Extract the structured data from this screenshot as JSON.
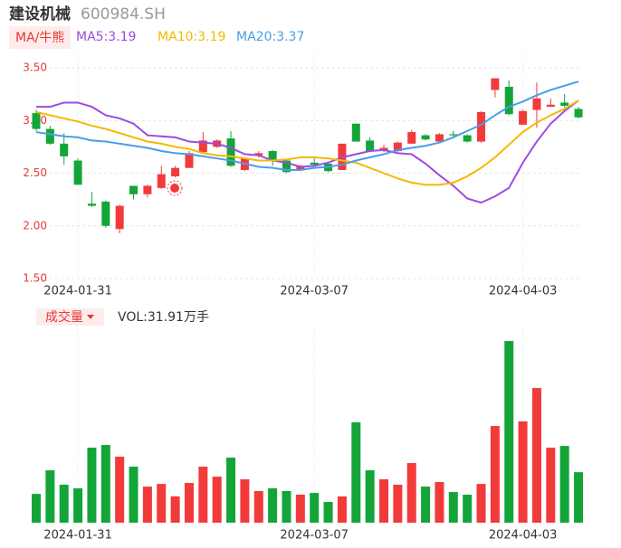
{
  "chart_data": [
    {
      "type": "candlestick",
      "title": "建设机械",
      "subtitle": "600984.SH",
      "legend_button": "MA/牛熊",
      "categories": [
        null,
        null,
        null,
        "2024-01-31",
        null,
        null,
        null,
        null,
        null,
        null,
        null,
        null,
        null,
        null,
        null,
        null,
        null,
        null,
        null,
        null,
        "2024-03-07",
        null,
        null,
        null,
        null,
        null,
        null,
        null,
        null,
        null,
        null,
        null,
        null,
        null,
        null,
        "2024-04-03",
        null,
        null,
        null,
        null
      ],
      "open": [
        3.07,
        2.92,
        2.78,
        2.62,
        2.21,
        2.23,
        1.97,
        2.38,
        2.3,
        2.36,
        2.47,
        2.55,
        2.7,
        2.75,
        2.83,
        2.53,
        2.67,
        2.71,
        2.62,
        2.53,
        2.6,
        2.59,
        2.53,
        2.97,
        2.81,
        2.71,
        2.71,
        2.78,
        2.86,
        2.8,
        2.87,
        2.86,
        2.8,
        3.29,
        3.32,
        2.96,
        3.1,
        3.13,
        3.17,
        3.11
      ],
      "close": [
        2.92,
        2.78,
        2.66,
        2.39,
        2.19,
        2.0,
        2.19,
        2.3,
        2.38,
        2.49,
        2.55,
        2.69,
        2.81,
        2.81,
        2.57,
        2.64,
        2.69,
        2.62,
        2.51,
        2.57,
        2.58,
        2.52,
        2.78,
        2.8,
        2.71,
        2.74,
        2.79,
        2.89,
        2.82,
        2.87,
        2.86,
        2.8,
        3.08,
        3.4,
        3.06,
        3.09,
        3.21,
        3.15,
        3.14,
        3.03
      ],
      "high": [
        3.1,
        2.95,
        2.88,
        2.64,
        2.32,
        2.24,
        2.2,
        2.38,
        2.39,
        2.57,
        2.57,
        2.71,
        2.89,
        2.82,
        2.9,
        2.65,
        2.71,
        2.72,
        2.63,
        2.58,
        2.65,
        2.6,
        2.78,
        2.97,
        2.84,
        2.77,
        2.8,
        2.91,
        2.87,
        2.88,
        2.9,
        2.87,
        3.09,
        3.4,
        3.38,
        3.1,
        3.36,
        3.21,
        3.25,
        3.13
      ],
      "low": [
        2.9,
        2.77,
        2.58,
        2.39,
        2.18,
        1.98,
        1.93,
        2.25,
        2.27,
        2.35,
        2.46,
        2.55,
        2.7,
        2.74,
        2.56,
        2.52,
        2.65,
        2.57,
        2.5,
        2.52,
        2.57,
        2.51,
        2.53,
        2.8,
        2.7,
        2.7,
        2.7,
        2.78,
        2.81,
        2.8,
        2.84,
        2.79,
        2.79,
        3.22,
        3.05,
        2.96,
        2.93,
        3.13,
        3.12,
        3.02
      ],
      "up_color": "#f23a3a",
      "down_color": "#13a538",
      "series": [
        {
          "name": "MA5:3.19",
          "color": "#9b4be0",
          "values": [
            3.13,
            3.13,
            3.17,
            3.17,
            3.13,
            3.05,
            3.02,
            2.97,
            2.86,
            2.85,
            2.84,
            2.8,
            2.79,
            2.78,
            2.74,
            2.68,
            2.67,
            2.62,
            2.6,
            2.56,
            2.57,
            2.6,
            2.65,
            2.68,
            2.71,
            2.72,
            2.69,
            2.68,
            2.59,
            2.48,
            2.38,
            2.26,
            2.22,
            2.28,
            2.36,
            2.6,
            2.8,
            2.97,
            3.09,
            3.19
          ]
        },
        {
          "name": "MA10:3.19",
          "color": "#f5b800",
          "values": [
            3.08,
            3.05,
            3.02,
            2.99,
            2.95,
            2.92,
            2.88,
            2.84,
            2.8,
            2.78,
            2.75,
            2.73,
            2.69,
            2.67,
            2.66,
            2.64,
            2.62,
            2.62,
            2.63,
            2.65,
            2.65,
            2.64,
            2.62,
            2.6,
            2.55,
            2.5,
            2.45,
            2.41,
            2.39,
            2.39,
            2.41,
            2.47,
            2.55,
            2.65,
            2.77,
            2.89,
            2.98,
            3.05,
            3.11,
            3.19
          ]
        },
        {
          "name": "MA20:3.37",
          "color": "#4a9de8",
          "values": [
            2.89,
            2.87,
            2.85,
            2.84,
            2.81,
            2.8,
            2.78,
            2.76,
            2.74,
            2.71,
            2.69,
            2.68,
            2.66,
            2.64,
            2.62,
            2.59,
            2.56,
            2.55,
            2.53,
            2.53,
            2.55,
            2.56,
            2.58,
            2.62,
            2.65,
            2.68,
            2.72,
            2.74,
            2.76,
            2.79,
            2.84,
            2.9,
            2.96,
            3.05,
            3.13,
            3.18,
            3.24,
            3.29,
            3.33,
            3.37
          ]
        }
      ],
      "ylim": [
        1.5,
        3.6
      ],
      "yticks": [
        {
          "value": 3.5,
          "label": "3.50"
        },
        {
          "value": 3,
          "label": "3.00"
        },
        {
          "value": 2.5,
          "label": "2.50"
        },
        {
          "value": 2,
          "label": "2.00"
        },
        {
          "value": 1.5,
          "label": "1.50"
        }
      ],
      "grid": true
    },
    {
      "type": "bar",
      "title": "成交量",
      "subtitle": "VOL:31.91万手",
      "categories": [
        null,
        null,
        null,
        "2024-01-31",
        null,
        null,
        null,
        null,
        null,
        null,
        null,
        null,
        null,
        null,
        null,
        null,
        null,
        null,
        null,
        null,
        "2024-03-07",
        null,
        null,
        null,
        null,
        null,
        null,
        null,
        null,
        null,
        null,
        null,
        null,
        null,
        null,
        "2024-04-03",
        null,
        null,
        null,
        null
      ],
      "values": [
        18.2,
        33.1,
        24.0,
        21.7,
        47.4,
        49.1,
        41.7,
        35.4,
        22.8,
        24.5,
        16.6,
        25.1,
        35.4,
        29.1,
        41.1,
        27.4,
        20.0,
        21.7,
        20.0,
        17.7,
        18.8,
        13.1,
        16.6,
        63.4,
        33.1,
        27.4,
        24.0,
        37.7,
        22.8,
        25.7,
        19.4,
        17.7,
        24.5,
        61.1,
        114.8,
        64.0,
        85.1,
        47.4,
        48.5,
        31.91
      ],
      "ylim": [
        0,
        120
      ]
    }
  ]
}
